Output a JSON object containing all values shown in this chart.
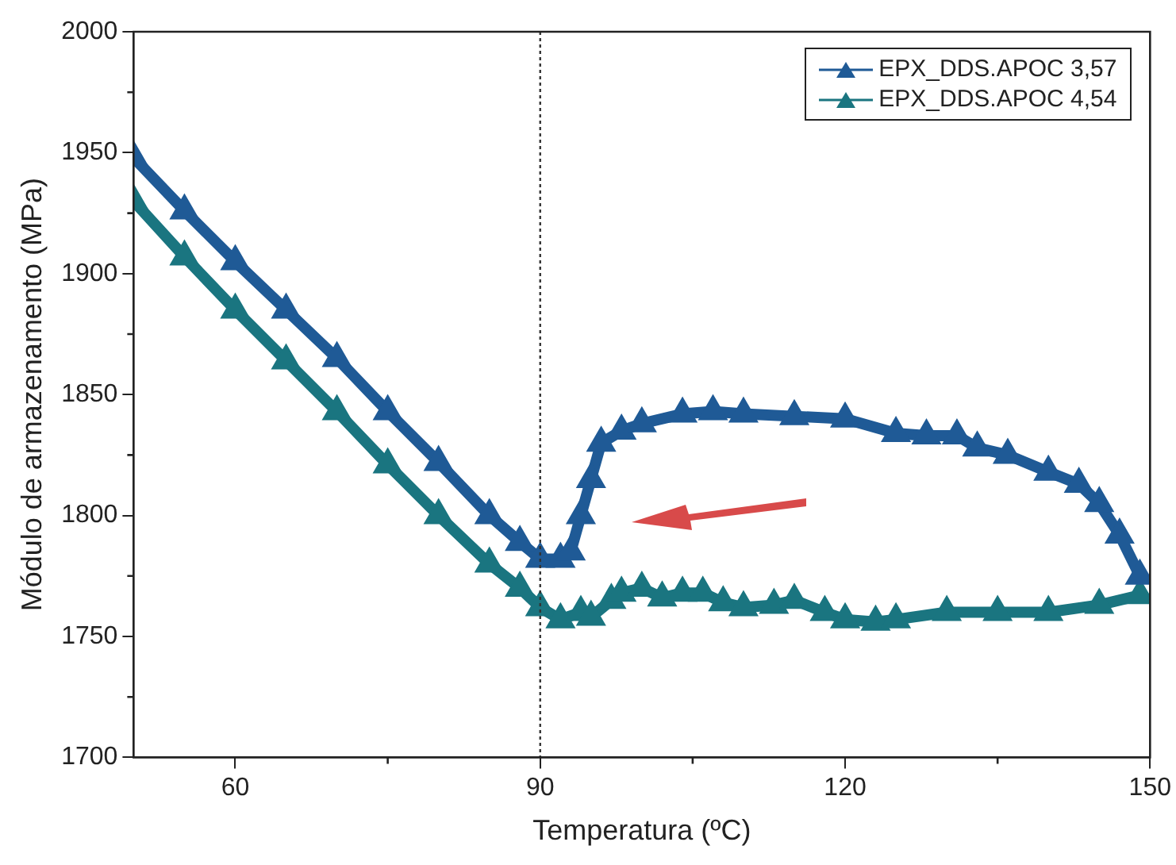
{
  "chart_data": {
    "type": "line",
    "xlabel": "Temperatura (ºC)",
    "ylabel": "Módulo de armazenamento (MPa)",
    "xlim": [
      50,
      150
    ],
    "xticks": [
      60,
      90,
      120,
      150
    ],
    "ylim": [
      1700,
      2000
    ],
    "yticks": [
      1700,
      1750,
      1800,
      1850,
      1900,
      1950,
      2000
    ],
    "grid": false,
    "legend": "top right",
    "marker": "triangle",
    "ref_lines": [
      {
        "axis": "x",
        "value": 90,
        "color": "#333333",
        "line_style": "dotted"
      }
    ],
    "series": [
      {
        "name": "EPX_DDS.APOC 3,57",
        "color": "#1f5a96",
        "x": [
          50,
          55,
          60,
          65,
          70,
          75,
          80,
          85,
          88,
          90,
          92,
          93,
          94,
          95,
          96,
          98,
          100,
          104,
          107,
          110,
          115,
          120,
          125,
          128,
          131,
          133,
          136,
          140,
          143,
          145,
          147,
          149
        ],
        "values": [
          1948,
          1926,
          1905,
          1885,
          1865,
          1843,
          1822,
          1800,
          1789,
          1782,
          1782,
          1785,
          1800,
          1815,
          1830,
          1835,
          1838,
          1842,
          1843,
          1842,
          1841,
          1840,
          1834,
          1833,
          1833,
          1828,
          1825,
          1818,
          1813,
          1805,
          1792,
          1775
        ]
      },
      {
        "name": "EPX_DDS.APOC 4,54",
        "color": "#1a7580",
        "x": [
          50,
          55,
          60,
          65,
          70,
          75,
          80,
          85,
          88,
          90,
          92,
          94,
          95,
          97,
          98,
          100,
          102,
          104,
          106,
          108,
          110,
          113,
          115,
          118,
          120,
          123,
          125,
          130,
          135,
          140,
          145,
          149
        ],
        "values": [
          1930,
          1907,
          1885,
          1864,
          1843,
          1821,
          1800,
          1780,
          1770,
          1762,
          1757,
          1760,
          1758,
          1765,
          1768,
          1770,
          1766,
          1768,
          1768,
          1764,
          1762,
          1763,
          1765,
          1760,
          1757,
          1756,
          1757,
          1760,
          1760,
          1760,
          1763,
          1767
        ]
      }
    ]
  }
}
